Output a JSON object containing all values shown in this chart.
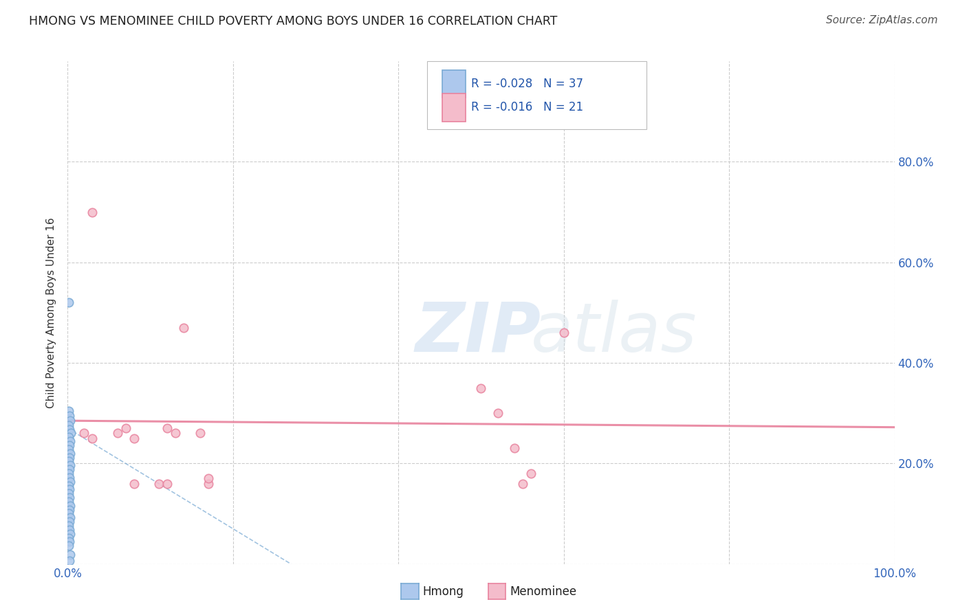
{
  "title": "HMONG VS MENOMINEE CHILD POVERTY AMONG BOYS UNDER 16 CORRELATION CHART",
  "source": "Source: ZipAtlas.com",
  "ylabel": "Child Poverty Among Boys Under 16",
  "watermark_zip": "ZIP",
  "watermark_atlas": "atlas",
  "xlim": [
    0,
    1.0
  ],
  "ylim": [
    0,
    1.0
  ],
  "xticks": [
    0.0,
    0.2,
    0.4,
    0.6,
    0.8,
    1.0
  ],
  "xticklabels": [
    "0.0%",
    "",
    "",
    "",
    "",
    "100.0%"
  ],
  "yticks": [
    0.0,
    0.2,
    0.4,
    0.6,
    0.8
  ],
  "yticklabels_right": [
    "",
    "20.0%",
    "40.0%",
    "60.0%",
    "80.0%"
  ],
  "hmong_color": "#adc8ed",
  "hmong_edge_color": "#7aaad4",
  "menominee_color": "#f4bccb",
  "menominee_edge_color": "#e8839e",
  "hmong_R": -0.028,
  "hmong_N": 37,
  "menominee_R": -0.016,
  "menominee_N": 21,
  "legend_label_hmong": "Hmong",
  "legend_label_menominee": "Menominee",
  "hmong_x": [
    0.001,
    0.002,
    0.003,
    0.001,
    0.002,
    0.004,
    0.001,
    0.003,
    0.001,
    0.002,
    0.001,
    0.003,
    0.002,
    0.001,
    0.003,
    0.002,
    0.001,
    0.002,
    0.003,
    0.001,
    0.002,
    0.001,
    0.002,
    0.001,
    0.003,
    0.002,
    0.001,
    0.003,
    0.002,
    0.001,
    0.002,
    0.003,
    0.001,
    0.002,
    0.001,
    0.003,
    0.002
  ],
  "hmong_y": [
    0.305,
    0.295,
    0.285,
    0.275,
    0.268,
    0.26,
    0.252,
    0.244,
    0.52,
    0.236,
    0.228,
    0.22,
    0.212,
    0.204,
    0.196,
    0.188,
    0.18,
    0.172,
    0.164,
    0.156,
    0.148,
    0.14,
    0.132,
    0.124,
    0.116,
    0.108,
    0.1,
    0.092,
    0.084,
    0.076,
    0.068,
    0.06,
    0.052,
    0.044,
    0.036,
    0.018,
    0.006
  ],
  "menominee_x": [
    0.02,
    0.03,
    0.06,
    0.07,
    0.08,
    0.08,
    0.11,
    0.12,
    0.12,
    0.13,
    0.03,
    0.14,
    0.16,
    0.17,
    0.17,
    0.5,
    0.52,
    0.54,
    0.55,
    0.56,
    0.6
  ],
  "menominee_y": [
    0.26,
    0.25,
    0.26,
    0.27,
    0.25,
    0.16,
    0.16,
    0.16,
    0.27,
    0.26,
    0.7,
    0.47,
    0.26,
    0.16,
    0.17,
    0.35,
    0.3,
    0.23,
    0.16,
    0.18,
    0.46
  ],
  "blue_trendline_x": [
    0.0,
    0.27
  ],
  "blue_trendline_y": [
    0.27,
    0.0
  ],
  "pink_trendline_x": [
    0.0,
    1.0
  ],
  "pink_trendline_y": [
    0.285,
    0.272
  ],
  "grid_color": "#cccccc",
  "background_color": "#ffffff",
  "title_color": "#222222",
  "axis_label_color": "#333333",
  "tick_color": "#3366bb",
  "source_color": "#555555",
  "marker_size": 80,
  "marker_linewidth": 1.2,
  "legend_text_color": "#2255aa"
}
